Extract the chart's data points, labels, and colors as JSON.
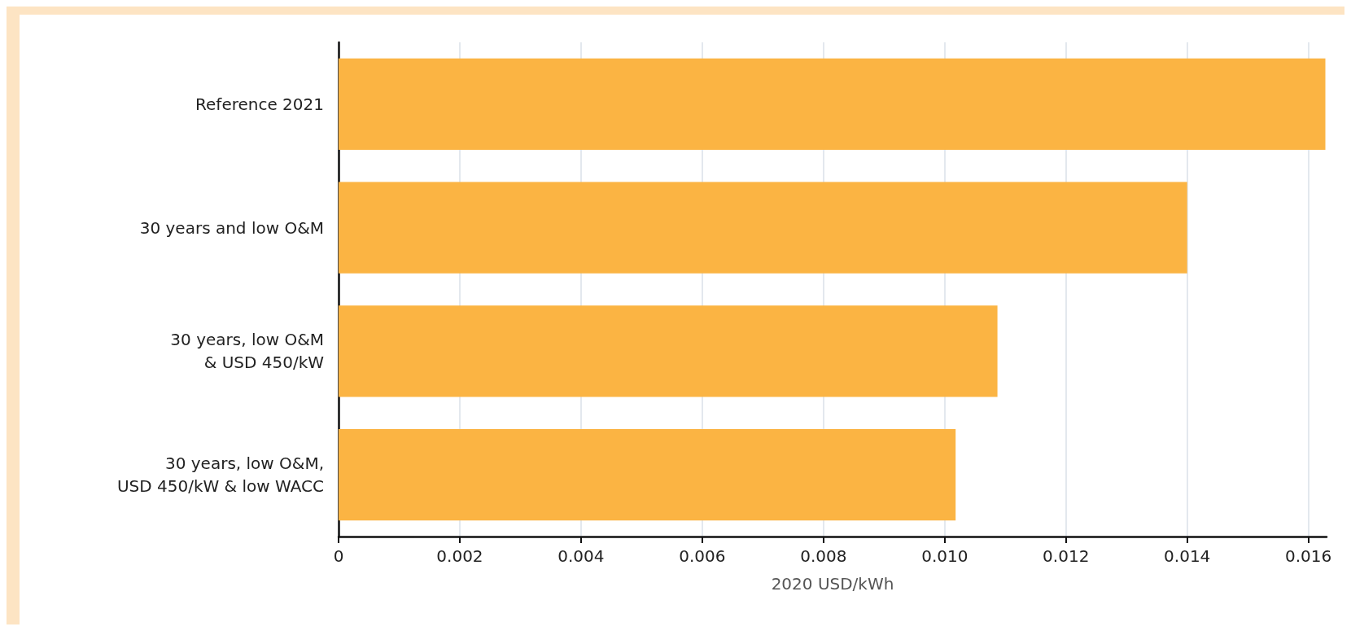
{
  "chart_data": {
    "type": "bar",
    "orientation": "horizontal",
    "categories": [
      "Reference 2021",
      "30 years and low O&M",
      "30 years, low O&M\n& USD 450/kW",
      "30 years, low O&M,\nUSD 450/kW & low WACC"
    ],
    "values": [
      0.01628,
      0.014,
      0.01087,
      0.01018
    ],
    "color": "#fbb443",
    "xlabel": "2020 USD/kWh",
    "xlim": [
      0,
      0.0163
    ],
    "xticks": [
      0,
      0.002,
      0.004,
      0.006,
      0.008,
      {
        "value": 0.01,
        "label": "0.010"
      },
      0.012,
      0.014,
      0.016
    ],
    "grid": "x"
  }
}
